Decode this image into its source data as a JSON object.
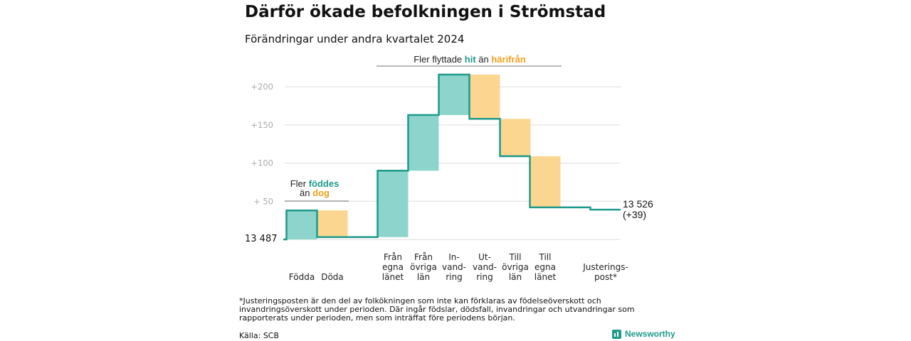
{
  "title": "Därför ökade befolkningen i Strömstad",
  "subtitle": "Förändringar under andra kvartalet 2024",
  "chart_data": {
    "type": "waterfall",
    "start_label": "13  487",
    "end_label": "13 526",
    "end_change": "(+39)",
    "start_value": 0,
    "ylim": [
      0,
      215
    ],
    "yticks": [
      {
        "value": 200,
        "label": "+200"
      },
      {
        "value": 150,
        "label": "+150"
      },
      {
        "value": 100,
        "label": "+100"
      },
      {
        "value": 50,
        "label": "+  50"
      }
    ],
    "grid": true,
    "positive_color": "#8dd5cc",
    "negative_color": "#fbd690",
    "line_color": "#1f9a8a",
    "steps": [
      {
        "label": [
          "Födda"
        ],
        "change": 38
      },
      {
        "label": [
          "Döda"
        ],
        "change": -35
      },
      {
        "label": [
          "Från",
          "egna",
          "länet"
        ],
        "change": 87
      },
      {
        "label": [
          "Från",
          "övriga",
          "län"
        ],
        "change": 73
      },
      {
        "label": [
          "In-",
          "vand-",
          "ring"
        ],
        "change": 53
      },
      {
        "label": [
          "Ut-",
          "vand-",
          "ring"
        ],
        "change": -58
      },
      {
        "label": [
          "Till",
          "övriga",
          "län"
        ],
        "change": -49
      },
      {
        "label": [
          "Till",
          "egna",
          "länet"
        ],
        "change": -67
      },
      {
        "label": [
          "Justerings-",
          "post*"
        ],
        "change": -3
      }
    ],
    "annotations": {
      "births": {
        "line1": "Fler ",
        "hi1": "föddes",
        "line2": "än ",
        "hi2": "dog"
      },
      "migration": {
        "prefix": "Fler flyttade ",
        "hi1": "hit",
        "mid": "  än ",
        "hi2": "härifrån"
      }
    }
  },
  "footnote": "*Justeringsposten är den del av folkökningen som inte kan förklaras av födelseöverskott och invandringsöverskott under perioden. Där ingår födslar, dödsfall, invandringar och utvandringar som rapporterats under perioden, men som inträffat före periodens början.",
  "source": "Källa: SCB",
  "brand": "Newsworthy",
  "colors": {
    "teal": "#1f9a8a",
    "orange": "#f0a020"
  }
}
